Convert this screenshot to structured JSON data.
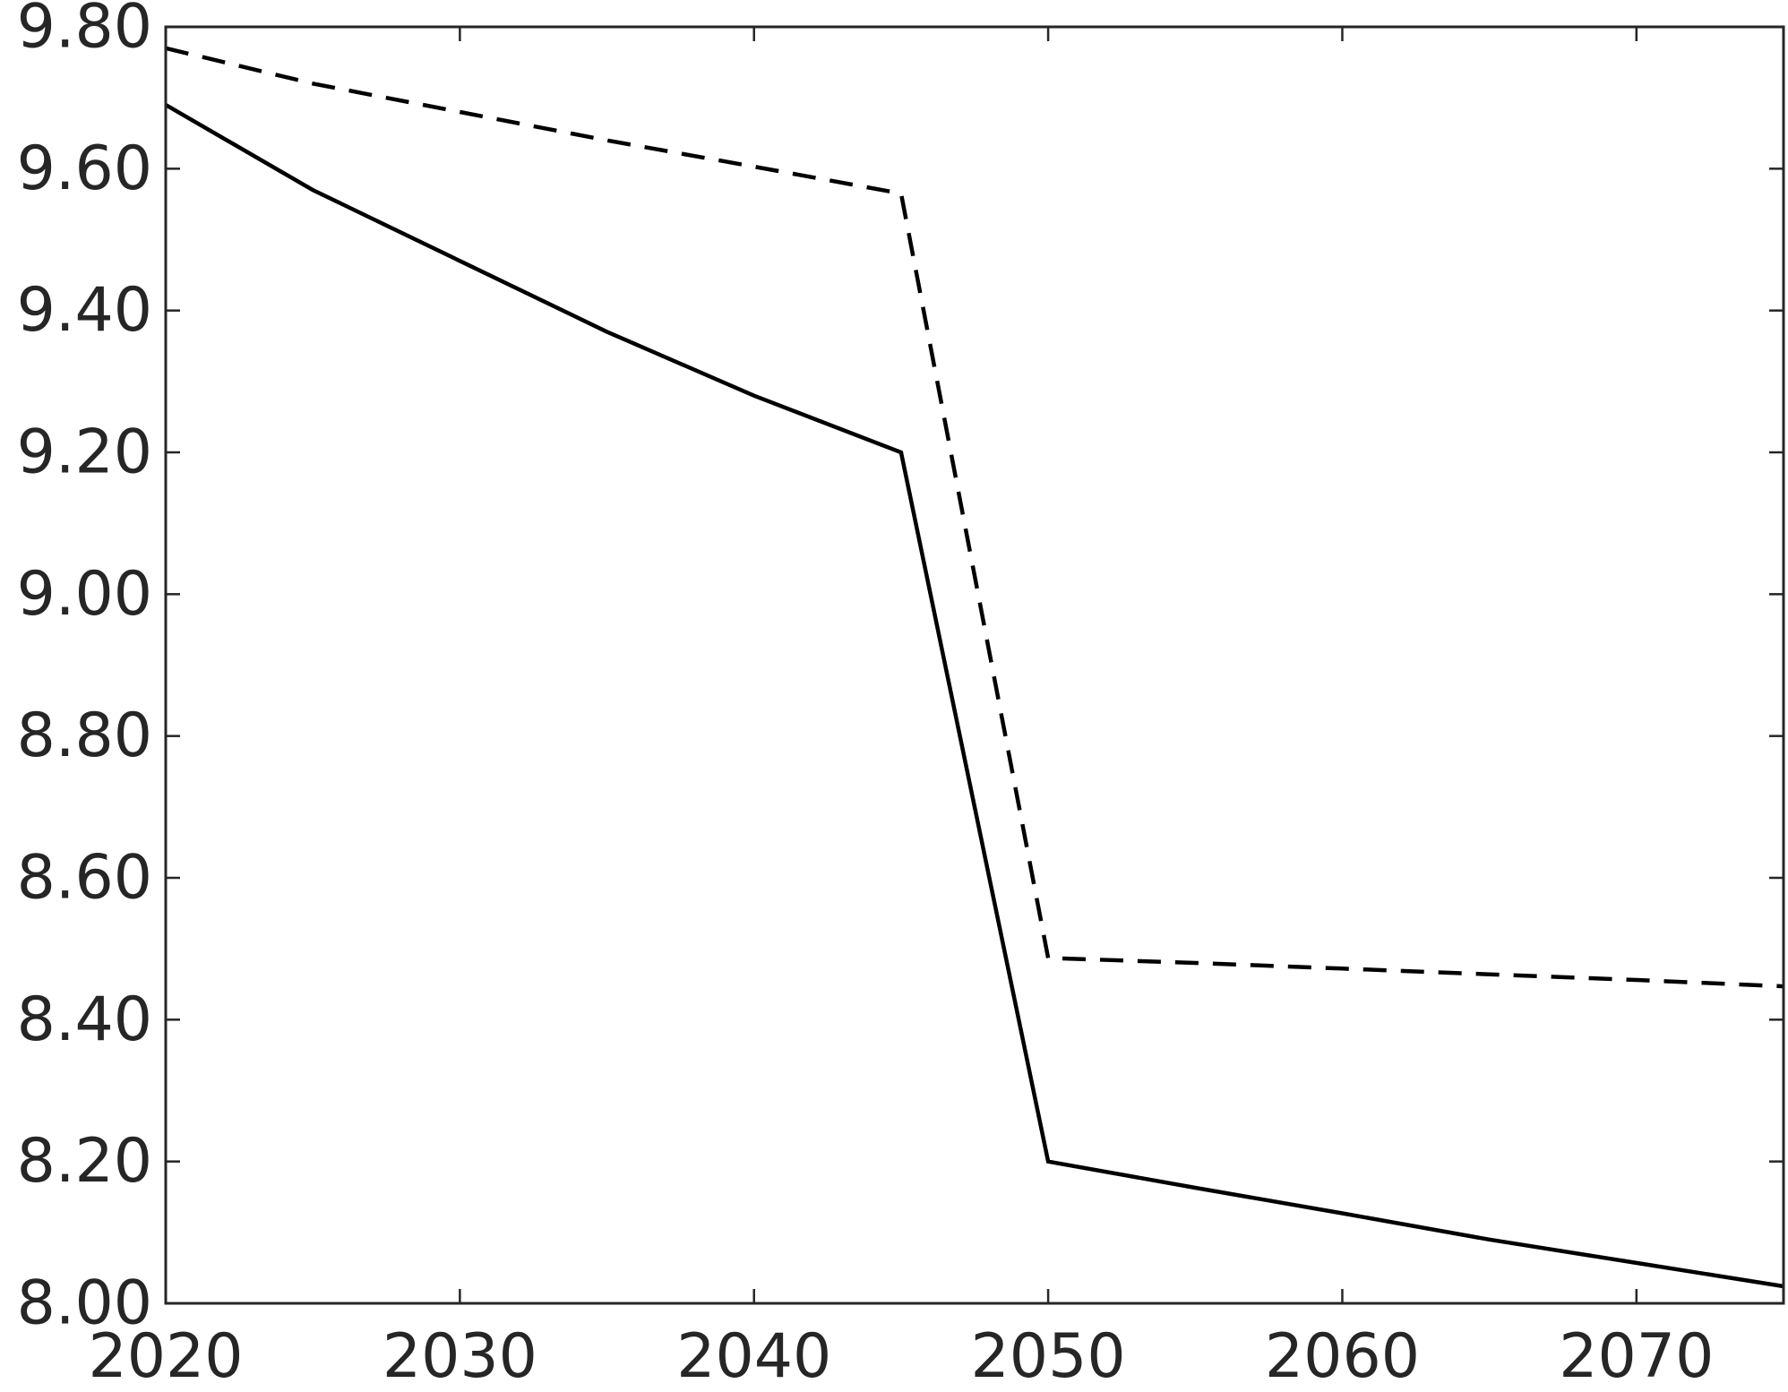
{
  "chart_data": {
    "type": "line",
    "title": "",
    "xlabel": "",
    "ylabel": "",
    "xlim": [
      2020,
      2075
    ],
    "ylim": [
      8.0,
      9.8
    ],
    "x_ticks": [
      2020,
      2030,
      2040,
      2050,
      2060,
      2070
    ],
    "x_tick_labels": [
      "2020",
      "2030",
      "2040",
      "2050",
      "2060",
      "2070"
    ],
    "y_ticks": [
      8.0,
      8.2,
      8.4,
      8.6,
      8.8,
      9.0,
      9.2,
      9.4,
      9.6,
      9.8
    ],
    "y_tick_labels": [
      "8.00",
      "8.20",
      "8.40",
      "8.60",
      "8.80",
      "9.00",
      "9.20",
      "9.40",
      "9.60",
      "9.80"
    ],
    "grid": false,
    "box": true,
    "line_color": "#000000",
    "axis_color": "#262626",
    "series": [
      {
        "style": "solid",
        "x": [
          2020,
          2025,
          2030,
          2035,
          2040,
          2045,
          2050,
          2055,
          2060,
          2065,
          2070,
          2075
        ],
        "y": [
          9.69,
          9.57,
          9.47,
          9.37,
          9.28,
          9.2,
          8.2,
          8.163,
          8.127,
          8.09,
          8.057,
          8.024
        ]
      },
      {
        "style": "dashed",
        "x": [
          2020,
          2025,
          2030,
          2035,
          2040,
          2045,
          2050,
          2055,
          2060,
          2065,
          2070,
          2075
        ],
        "y": [
          9.77,
          9.72,
          9.68,
          9.64,
          9.603,
          9.565,
          8.487,
          8.48,
          8.472,
          8.464,
          8.456,
          8.447
        ]
      }
    ]
  }
}
